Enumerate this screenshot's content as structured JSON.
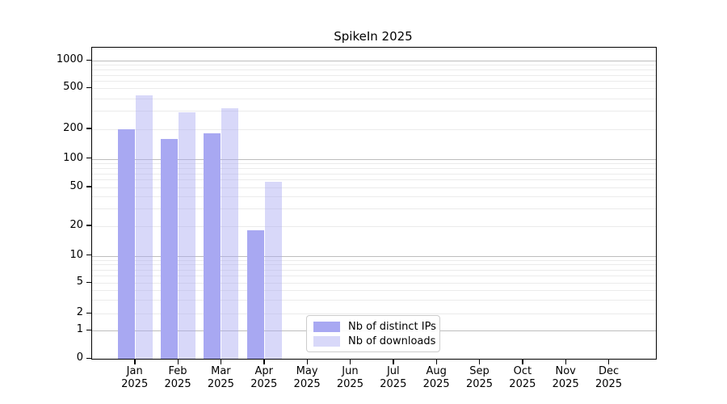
{
  "title": "SpikeIn 2025",
  "chart_data": {
    "type": "bar",
    "title": "SpikeIn 2025",
    "categories": [
      "Jan",
      "Feb",
      "Mar",
      "Apr",
      "May",
      "Jun",
      "Jul",
      "Aug",
      "Sep",
      "Oct",
      "Nov",
      "Dec"
    ],
    "x_tick_second_line": "2025",
    "series": [
      {
        "name": "Nb of distinct IPs",
        "color": "#a8a8f2",
        "opacity": 1,
        "values": [
          200,
          160,
          180,
          18,
          null,
          null,
          null,
          null,
          null,
          null,
          null,
          null
        ]
      },
      {
        "name": "Nb of downloads",
        "color": "#a8a8f2",
        "opacity": 0.45,
        "values": [
          430,
          290,
          320,
          57,
          null,
          null,
          null,
          null,
          null,
          null,
          null,
          null
        ]
      }
    ],
    "y_ticks": [
      0,
      1,
      2,
      5,
      10,
      20,
      50,
      100,
      200,
      500,
      1000
    ],
    "ylim": [
      0,
      1100
    ],
    "y_scale": "log-like with zero baseline",
    "grid": true,
    "legend_position": "lower center inside plot",
    "colors": {
      "grid_major": "#bdbdbd",
      "grid_minor": "#ebebeb",
      "spine": "#000000",
      "background": "#ffffff"
    }
  }
}
